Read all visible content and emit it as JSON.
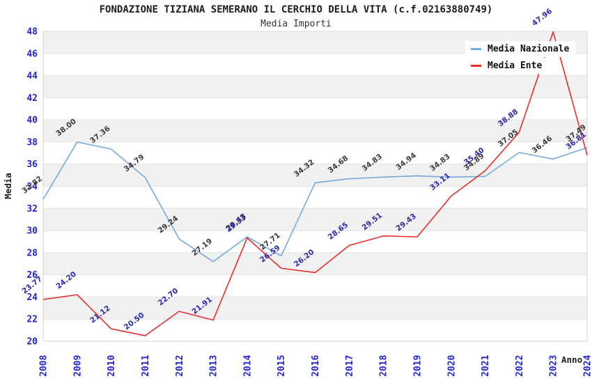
{
  "header": {
    "title": "FONDAZIONE TIZIANA SEMERANO IL CERCHIO DELLA VITA (c.f.02163880749)",
    "subtitle": "Media Importi"
  },
  "chart_data": {
    "type": "line",
    "title": "FONDAZIONE TIZIANA SEMERANO IL CERCHIO DELLA VITA (c.f.02163880749)",
    "subtitle": "Media Importi",
    "xlabel": "Anno",
    "ylabel": "Media",
    "categories": [
      "2008",
      "2009",
      "2010",
      "2011",
      "2012",
      "2013",
      "2014",
      "2015",
      "2016",
      "2017",
      "2018",
      "2019",
      "2020",
      "2021",
      "2022",
      "2023",
      "2024"
    ],
    "series": [
      {
        "name": "Media Nazionale",
        "color": "#74aadc",
        "label_color": "#3c3c3c",
        "values": [
          32.82,
          38.0,
          37.36,
          34.79,
          29.24,
          27.19,
          29.43,
          27.71,
          34.32,
          34.68,
          34.83,
          34.94,
          34.83,
          34.89,
          37.05,
          36.46,
          37.49
        ]
      },
      {
        "name": "Media Ente",
        "color": "#e62e2e",
        "label_color": "#2c2cb0",
        "values": [
          23.77,
          24.2,
          21.12,
          20.5,
          22.7,
          21.91,
          29.33,
          26.59,
          26.2,
          28.65,
          29.51,
          29.43,
          33.11,
          35.4,
          38.88,
          47.96,
          36.81
        ]
      }
    ],
    "ylim": [
      20,
      48
    ],
    "ytick_step": 2,
    "yticks": [
      20,
      22,
      24,
      26,
      28,
      30,
      32,
      34,
      36,
      38,
      40,
      42,
      44,
      46,
      48
    ],
    "grid": "horizontal-bands",
    "legend_position": "top-right",
    "band_color": "#f1f1f1",
    "gridline_color": "#e2e2e2",
    "border_color": "#d4d4d4",
    "tick_color": "#2323d7",
    "axis_title_color": "#1c1c1c"
  }
}
